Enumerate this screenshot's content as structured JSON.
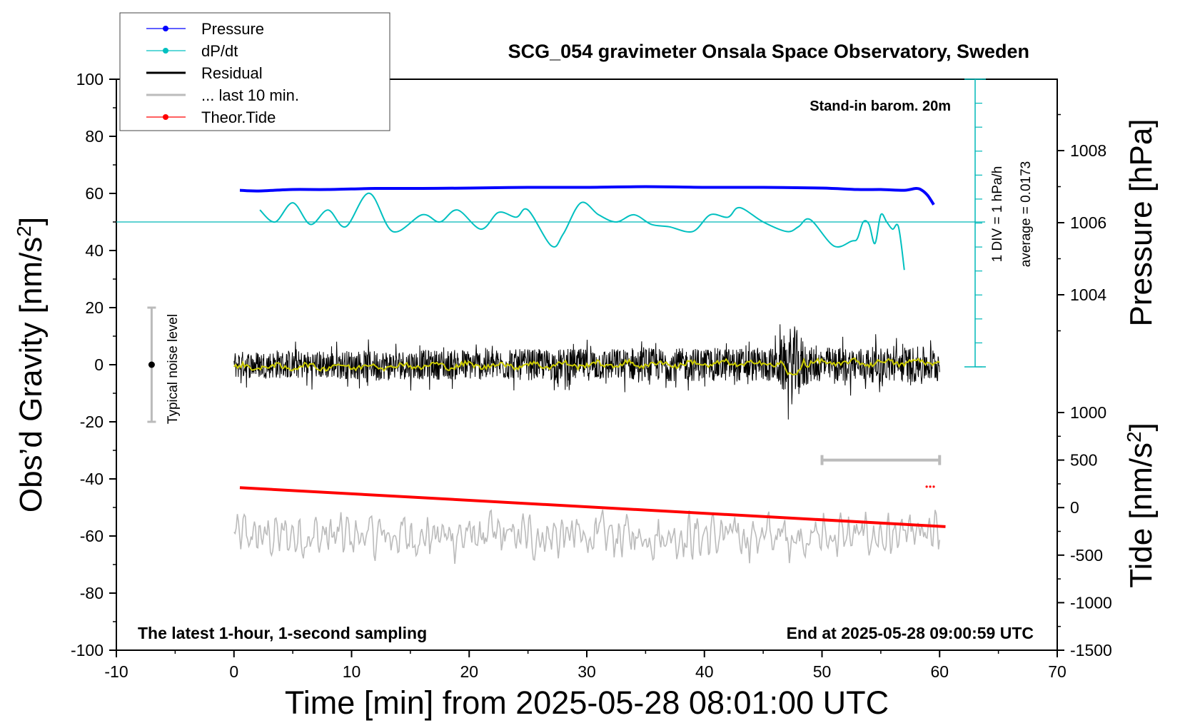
{
  "chart_data": {
    "type": "line",
    "title": "SCG_054 gravimeter Onsala Space Observatory, Sweden",
    "xlabel": "Time [min] from 2025-05-28 08:01:00 UTC",
    "ylabel_left_prefix": "Obs’d Gravity [nm/s",
    "ylabel_left_sup": "2",
    "ylabel_left_suffix": "]",
    "ylabel_pressure": "Pressure [hPa]",
    "ylabel_tide_prefix": "Tide [nm/s",
    "ylabel_tide_sup": "2",
    "ylabel_tide_suffix": "]",
    "xlim": [
      -10,
      70
    ],
    "ylim": [
      -100,
      100
    ],
    "pressure_lim": [
      1004,
      1008
    ],
    "tide_lim": [
      -1500,
      1000
    ],
    "x_ticks": [
      "-10",
      "0",
      "10",
      "20",
      "30",
      "40",
      "50",
      "60",
      "70"
    ],
    "y_ticks": [
      "-100",
      "-80",
      "-60",
      "-40",
      "-20",
      "0",
      "20",
      "40",
      "60",
      "80",
      "100"
    ],
    "pressure_ticks": [
      "1004",
      "1006",
      "1008"
    ],
    "tide_ticks": [
      "-1500",
      "-1000",
      "-500",
      "0",
      "500",
      "1000"
    ],
    "grid": false,
    "legend_position": "top-left outside",
    "legend": [
      {
        "label": "Pressure",
        "color": "#0000ff",
        "marker": true
      },
      {
        "label": "dP/dt",
        "color": "#00c0c0",
        "marker": true
      },
      {
        "label": "Residual",
        "color": "#000000",
        "marker": false
      },
      {
        "label": "... last 10 min.",
        "color": "#bbbbbb",
        "marker": false
      },
      {
        "label": "Theor.Tide",
        "color": "#ff0000",
        "marker": true
      }
    ],
    "annotations": {
      "barometer": "Stand-in barom. 20m",
      "div_scale": "1 DIV = 1 hPa/h",
      "average": "average = 0.0173",
      "noise": "Typical noise level",
      "sampling": "The latest 1-hour, 1-second sampling",
      "end_time": "End at 2025-05-28 09:00:59 UTC"
    },
    "noise_bar": {
      "x": -7,
      "y_center": 0,
      "y_range": [
        -20,
        20
      ]
    },
    "last10_range_minutes": [
      50,
      60
    ],
    "series": [
      {
        "name": "Pressure",
        "color": "#0000ff",
        "x": [
          0.5,
          2,
          5,
          8,
          12,
          16,
          20,
          25,
          30,
          35,
          40,
          45,
          50,
          53,
          55,
          57,
          58,
          58.5,
          59,
          59.5
        ],
        "y": [
          1006.9,
          1006.88,
          1006.92,
          1006.92,
          1006.95,
          1006.95,
          1006.96,
          1006.98,
          1006.98,
          1007.0,
          1006.98,
          1006.98,
          1006.96,
          1006.92,
          1006.92,
          1006.9,
          1006.95,
          1006.9,
          1006.75,
          1006.5
        ]
      },
      {
        "name": "dP/dt",
        "color": "#00c0c0",
        "x": [
          2.2,
          3.5,
          5,
          6.5,
          8,
          9.5,
          11.5,
          13.5,
          16,
          17.5,
          19,
          21,
          22.5,
          24,
          25,
          27,
          28,
          29.5,
          31,
          32.5,
          34,
          35.5,
          37,
          39,
          40.5,
          42,
          43,
          45,
          47,
          48,
          49,
          51,
          52.5,
          53,
          53.5,
          54,
          54.5,
          55,
          55.5,
          56,
          56.5,
          57
        ],
        "y": [
          0.5,
          0.0,
          0.8,
          -0.1,
          0.5,
          -0.2,
          1.2,
          -0.4,
          0.3,
          0.0,
          0.5,
          -0.3,
          0.4,
          0.2,
          0.5,
          -1.0,
          -0.5,
          0.8,
          0.3,
          0.0,
          0.3,
          -0.1,
          -0.2,
          -0.4,
          0.3,
          0.2,
          0.6,
          0.0,
          -0.4,
          -0.2,
          0.1,
          -1.0,
          -0.8,
          -0.7,
          0.0,
          -0.1,
          -0.9,
          0.3,
          0.0,
          -0.3,
          -0.2,
          -2.0
        ]
      },
      {
        "name": "Residual",
        "color": "#000000",
        "x_range": [
          0,
          60
        ],
        "amplitude": 8,
        "event": {
          "x_range": [
            46,
            49
          ],
          "amplitude": 18
        }
      },
      {
        "name": "Residual smoothed",
        "color": "#cccc00",
        "x_range": [
          0,
          60
        ],
        "y": 0
      },
      {
        "name": "... last 10 min.",
        "color": "#bbbbbb",
        "x_range": [
          0,
          60
        ],
        "center": -60,
        "amplitude": 10
      },
      {
        "name": "Theor.Tide",
        "color": "#ff0000",
        "x": [
          0.5,
          60.5
        ],
        "y": [
          210,
          -200
        ]
      }
    ]
  }
}
